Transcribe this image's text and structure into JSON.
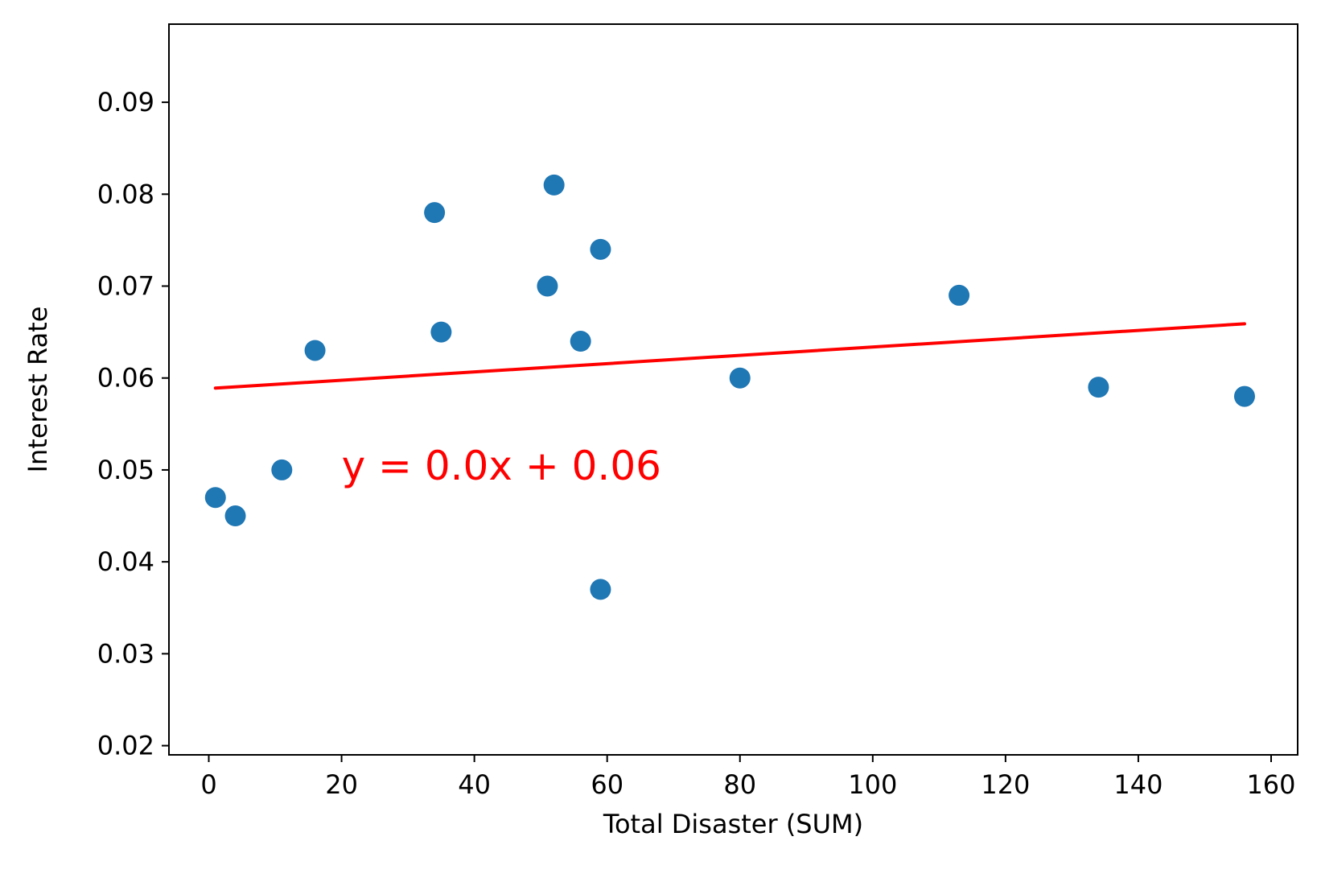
{
  "chart_data": {
    "type": "scatter",
    "title": "",
    "xlabel": "Total Disaster (SUM)",
    "ylabel": "Interest Rate",
    "xlim": [
      -6,
      164
    ],
    "ylim": [
      0.019,
      0.0985
    ],
    "xticks": [
      0,
      20,
      40,
      60,
      80,
      100,
      120,
      140,
      160
    ],
    "yticks": [
      0.02,
      0.03,
      0.04,
      0.05,
      0.06,
      0.07,
      0.08,
      0.09
    ],
    "xtick_labels": [
      "0",
      "20",
      "40",
      "60",
      "80",
      "100",
      "120",
      "140",
      "160"
    ],
    "ytick_labels": [
      "0.02",
      "0.03",
      "0.04",
      "0.05",
      "0.06",
      "0.07",
      "0.08",
      "0.09"
    ],
    "grid": false,
    "points": [
      {
        "x": 1,
        "y": 0.047
      },
      {
        "x": 4,
        "y": 0.045
      },
      {
        "x": 11,
        "y": 0.05
      },
      {
        "x": 16,
        "y": 0.063
      },
      {
        "x": 34,
        "y": 0.078
      },
      {
        "x": 35,
        "y": 0.065
      },
      {
        "x": 51,
        "y": 0.07
      },
      {
        "x": 52,
        "y": 0.081
      },
      {
        "x": 56,
        "y": 0.064
      },
      {
        "x": 59,
        "y": 0.074
      },
      {
        "x": 59,
        "y": 0.037
      },
      {
        "x": 80,
        "y": 0.06
      },
      {
        "x": 113,
        "y": 0.069
      },
      {
        "x": 134,
        "y": 0.059
      },
      {
        "x": 156,
        "y": 0.058
      }
    ],
    "point_color": "#1f77b4",
    "trendline": {
      "x": [
        1,
        156
      ],
      "y": [
        0.0589,
        0.0659
      ],
      "color": "#ff0000"
    },
    "annotation": {
      "text": "y = 0.0x + 0.06",
      "x": 20,
      "y": 0.0505,
      "color": "#ff0000"
    }
  }
}
